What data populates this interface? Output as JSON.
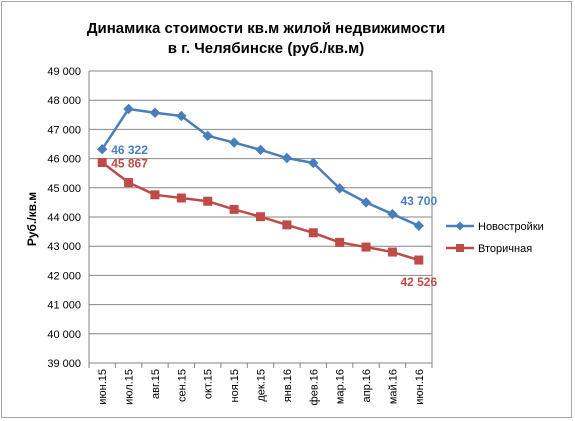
{
  "chart_data": {
    "type": "line",
    "title_lines": [
      "Динамика  стоимости кв.м жилой недвижимости",
      "в г. Челябинске  (руб./кв.м)"
    ],
    "xlabel": "",
    "ylabel": "Руб./кв.м",
    "categories": [
      "июн.15",
      "июл.15",
      "авг.15",
      "сен.15",
      "окт.15",
      "ноя.15",
      "дек.15",
      "янв.16",
      "фев.16",
      "мар.16",
      "апр.16",
      "май.16",
      "июн.16"
    ],
    "ylim": [
      39000,
      49000
    ],
    "yticks": [
      39000,
      40000,
      41000,
      42000,
      43000,
      44000,
      45000,
      46000,
      47000,
      48000,
      49000
    ],
    "ytick_labels": [
      "39 000",
      "40 000",
      "41 000",
      "42 000",
      "43 000",
      "44 000",
      "45 000",
      "46 000",
      "47 000",
      "48 000",
      "49 000"
    ],
    "grid": true,
    "legend_position": "right",
    "series": [
      {
        "name": "Новостройки",
        "color": "#4a7ebb",
        "marker": "diamond",
        "values": [
          46322,
          47700,
          47570,
          47460,
          46780,
          46550,
          46300,
          46020,
          45850,
          44980,
          44500,
          44100,
          43700
        ]
      },
      {
        "name": "Вторичная",
        "color": "#be4b48",
        "marker": "square",
        "values": [
          45867,
          45180,
          44760,
          44650,
          44540,
          44260,
          44010,
          43730,
          43460,
          43130,
          42970,
          42800,
          42526
        ]
      }
    ],
    "data_labels": [
      {
        "series": 0,
        "index": 0,
        "text": "46 322",
        "position": "right"
      },
      {
        "series": 1,
        "index": 0,
        "text": "45 867",
        "position": "right"
      },
      {
        "series": 0,
        "index": 12,
        "text": "43 700",
        "position": "above"
      },
      {
        "series": 1,
        "index": 12,
        "text": "42 526",
        "position": "below"
      }
    ]
  }
}
